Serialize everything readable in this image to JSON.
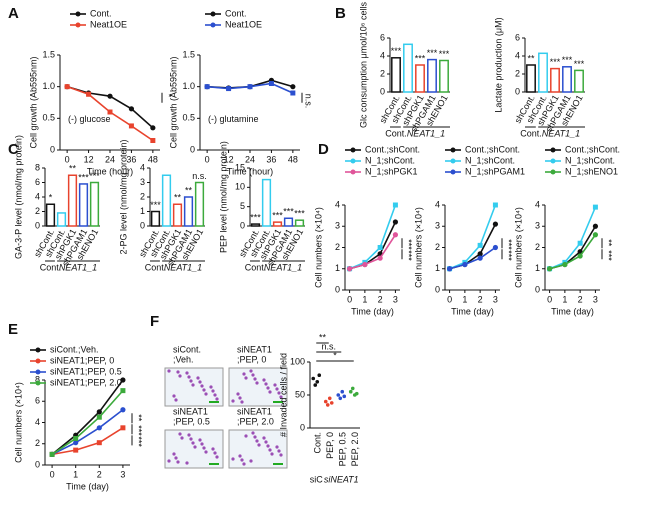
{
  "chart_data": [
    {
      "type": "line",
      "panel": "A",
      "ylabel": "Cell growth (Ab595nm)",
      "xlabel": "Time (hour)",
      "x": [
        0,
        12,
        24,
        36,
        48
      ],
      "xlim": [
        -4,
        52
      ],
      "xticks": [
        0,
        12,
        24,
        36,
        48
      ],
      "ylim": [
        0,
        1.5
      ],
      "yticks": [
        0,
        0.5,
        {
          "value": 1,
          "label": "1.0"
        },
        1.5
      ],
      "note": "(-) glucose",
      "significance": [
        "*"
      ],
      "series": [
        {
          "name": "Cont.",
          "color": "#111111",
          "values": [
            1.0,
            0.9,
            0.85,
            0.65,
            0.35
          ]
        },
        {
          "name": "Neat1OE",
          "color": "#e8432d",
          "values": [
            1.0,
            0.88,
            0.6,
            0.38,
            0.15
          ]
        }
      ]
    },
    {
      "type": "line",
      "ylabel": "Cell growth (Ab595nm)",
      "xlabel": "Time (hour)",
      "x": [
        0,
        12,
        24,
        36,
        48
      ],
      "xlim": [
        -4,
        52
      ],
      "xticks": [
        0,
        12,
        24,
        36,
        48
      ],
      "ylim": [
        0,
        1.5
      ],
      "yticks": [
        0,
        0.5,
        {
          "value": 1,
          "label": "1.0"
        },
        1.5
      ],
      "note": "(-) glutamine",
      "significance": [
        "n.s."
      ],
      "series": [
        {
          "name": "Cont.",
          "color": "#111111",
          "values": [
            1.0,
            0.98,
            1.0,
            1.1,
            1.0
          ]
        },
        {
          "name": "Neat1OE",
          "color": "#2b4fcf",
          "values": [
            1.0,
            0.97,
            1.0,
            1.05,
            0.9
          ]
        }
      ]
    },
    {
      "type": "bar",
      "panel": "B",
      "ylabel": "Glc consumption μmol/10⁶ cells",
      "categories": [
        "shCont.",
        "shCont.",
        "shPGK1",
        "shPGAM1",
        "shENO1"
      ],
      "values": [
        3.8,
        5.3,
        3.0,
        3.6,
        3.5
      ],
      "colors": [
        "#111111",
        "#33ccee",
        "#e8432d",
        "#2b4fcf",
        "#3caa3c"
      ],
      "ylim": [
        0,
        6
      ],
      "yticks": [
        0,
        2,
        4,
        6
      ],
      "significance": [
        "***",
        null,
        "***",
        "***",
        "***"
      ],
      "groups": [
        "Cont.",
        "NEAT1_1"
      ]
    },
    {
      "type": "bar",
      "ylabel": "Lactate production (μM)",
      "categories": [
        "shCont.",
        "shCont.",
        "shPGK1",
        "shPGAM1",
        "shENO1"
      ],
      "values": [
        3.0,
        4.3,
        2.6,
        2.8,
        2.4
      ],
      "colors": [
        "#111111",
        "#33ccee",
        "#e8432d",
        "#2b4fcf",
        "#3caa3c"
      ],
      "ylim": [
        0,
        6
      ],
      "yticks": [
        0,
        2,
        4,
        6
      ],
      "significance": [
        "**",
        null,
        "***",
        "***",
        "***"
      ],
      "groups": [
        "Cont.",
        "NEAT1_1"
      ]
    },
    {
      "type": "bar",
      "panel": "C",
      "ylabel": "GA-3-P level (nmol/mg protein)",
      "categories": [
        "shCont.",
        "shCont.",
        "shPGK1",
        "shPGAM1",
        "shENO1"
      ],
      "values": [
        3.0,
        1.8,
        7.0,
        5.8,
        6.0
      ],
      "colors": [
        "#111111",
        "#33ccee",
        "#e8432d",
        "#2b4fcf",
        "#3caa3c"
      ],
      "ylim": [
        0,
        8
      ],
      "yticks": [
        0,
        2,
        4,
        6,
        8
      ],
      "significance": [
        "*",
        null,
        "**",
        "***",
        "***"
      ],
      "groups": [
        "Cont.",
        "NEAT1_1"
      ]
    },
    {
      "type": "bar",
      "ylabel": "2-PG level (nmol/mg protein)",
      "categories": [
        "shCont.",
        "shCont.",
        "shPGK1",
        "shPGAM1",
        "shENO1"
      ],
      "values": [
        1.0,
        3.5,
        1.5,
        2.0,
        3.0
      ],
      "colors": [
        "#111111",
        "#33ccee",
        "#e8432d",
        "#2b4fcf",
        "#3caa3c"
      ],
      "ylim": [
        0,
        4
      ],
      "yticks": [
        0,
        1,
        2,
        3,
        4
      ],
      "significance": [
        "***",
        null,
        "**",
        "**",
        "n.s."
      ],
      "groups": [
        "Cont.",
        "NEAT1_1"
      ]
    },
    {
      "type": "bar",
      "ylabel": "PEP level (nmol/mg protein)",
      "categories": [
        "shCont.",
        "shCont.",
        "shPGK1",
        "shPGAM1",
        "shENO1"
      ],
      "values": [
        0.5,
        12,
        1,
        2,
        1.5
      ],
      "colors": [
        "#111111",
        "#33ccee",
        "#e8432d",
        "#2b4fcf",
        "#3caa3c"
      ],
      "ylim": [
        0,
        15
      ],
      "yticks": [
        0,
        5,
        10,
        15
      ],
      "significance": [
        "***",
        null,
        "***",
        "***",
        "***"
      ],
      "groups": [
        "Cont.",
        "NEAT1_1"
      ]
    },
    {
      "type": "line",
      "panel": "D",
      "ylabel": "Cell numbers (×10⁴)",
      "xlabel": "Time (day)",
      "x": [
        0,
        1,
        2,
        3
      ],
      "xlim": [
        -0.3,
        3.3
      ],
      "xticks": [
        0,
        1,
        2,
        3
      ],
      "ylim": [
        0,
        4
      ],
      "yticks": [
        0,
        1,
        2,
        3,
        4
      ],
      "significance": [
        "***",
        "***"
      ],
      "series": [
        {
          "name": "Cont.;shCont.",
          "color": "#111111",
          "values": [
            1,
            1.2,
            1.7,
            3.2
          ]
        },
        {
          "name": "N_1;shCont.",
          "color": "#33ccee",
          "values": [
            1,
            1.3,
            2,
            4
          ]
        },
        {
          "name": "N_1;shPGK1",
          "color": "#e0559a",
          "values": [
            1,
            1.2,
            1.5,
            2.6
          ]
        }
      ]
    },
    {
      "type": "line",
      "ylabel": "Cell numbers (×10⁴)",
      "xlabel": "Time (day)",
      "x": [
        0,
        1,
        2,
        3
      ],
      "xlim": [
        -0.3,
        3.3
      ],
      "xticks": [
        0,
        1,
        2,
        3
      ],
      "ylim": [
        0,
        4
      ],
      "yticks": [
        0,
        1,
        2,
        3,
        4
      ],
      "significance": [
        "***",
        "***"
      ],
      "series": [
        {
          "name": "Cont.;shCont.",
          "color": "#111111",
          "values": [
            1,
            1.2,
            1.7,
            3.1
          ]
        },
        {
          "name": "N_1;shCont.",
          "color": "#33ccee",
          "values": [
            1,
            1.3,
            2.1,
            4
          ]
        },
        {
          "name": "N_1;shPGAM1",
          "color": "#2b4fcf",
          "values": [
            1,
            1.2,
            1.5,
            2.0
          ]
        }
      ]
    },
    {
      "type": "line",
      "ylabel": "Cell numbers (×10⁴)",
      "xlabel": "Time (day)",
      "x": [
        0,
        1,
        2,
        3
      ],
      "xlim": [
        -0.3,
        3.3
      ],
      "xticks": [
        0,
        1,
        2,
        3
      ],
      "ylim": [
        0,
        4
      ],
      "yticks": [
        0,
        1,
        2,
        3,
        4
      ],
      "significance": [
        "**",
        "***"
      ],
      "series": [
        {
          "name": "Cont.;shCont.",
          "color": "#111111",
          "values": [
            1,
            1.2,
            1.8,
            3.0
          ]
        },
        {
          "name": "N_1;shCont.",
          "color": "#33ccee",
          "values": [
            1,
            1.3,
            2.2,
            3.9
          ]
        },
        {
          "name": "N_1;shENO1",
          "color": "#3caa3c",
          "values": [
            1,
            1.2,
            1.6,
            2.6
          ]
        }
      ]
    },
    {
      "type": "line",
      "panel": "E",
      "ylabel": "Cell numbers (×10⁴)",
      "xlabel": "Time (day)",
      "x": [
        0,
        1,
        2,
        3
      ],
      "xlim": [
        -0.3,
        3.3
      ],
      "xticks": [
        0,
        1,
        2,
        3
      ],
      "ylim": [
        0,
        8
      ],
      "yticks": [
        0,
        2,
        4,
        6,
        8
      ],
      "significance": [
        "**",
        "***",
        "***"
      ],
      "series": [
        {
          "name": "siCont.;Veh.",
          "color": "#111111",
          "values": [
            1,
            2.8,
            5,
            8
          ]
        },
        {
          "name": "siNEAT1;PEP, 0",
          "color": "#e8432d",
          "values": [
            1,
            1.4,
            2.1,
            3.5
          ]
        },
        {
          "name": "siNEAT1;PEP, 0.5",
          "color": "#2b4fcf",
          "values": [
            1,
            2.1,
            3.5,
            5.2
          ]
        },
        {
          "name": "siNEAT1;PEP, 2.0",
          "color": "#3caa3c",
          "values": [
            1,
            2.5,
            4.5,
            7
          ]
        }
      ]
    },
    {
      "type": "dot",
      "panel": "F",
      "ylabel": "# Invaded cells / field",
      "categories": [
        "Cont.",
        "PEP, 0",
        "PEP, 0.5",
        "PEP, 2.0"
      ],
      "colors": [
        "#111111",
        "#e8432d",
        "#2b4fcf",
        "#3caa3c"
      ],
      "points": [
        [
          75,
          65,
          70,
          80
        ],
        [
          40,
          35,
          45,
          38
        ],
        [
          50,
          45,
          55,
          48
        ],
        [
          55,
          60,
          50,
          52
        ]
      ],
      "ylim": [
        0,
        100
      ],
      "yticks": [
        0,
        50,
        100
      ],
      "significance": [
        "**",
        "n.s.",
        "*"
      ],
      "groups": [
        "siC",
        "siNEAT1"
      ],
      "image_labels": [
        [
          "siCont.",
          ";Veh."
        ],
        [
          "siNEAT1",
          ";PEP, 0"
        ],
        [
          "siNEAT1",
          ";PEP, 0.5"
        ],
        [
          "siNEAT1",
          ";PEP, 2.0"
        ]
      ]
    }
  ]
}
